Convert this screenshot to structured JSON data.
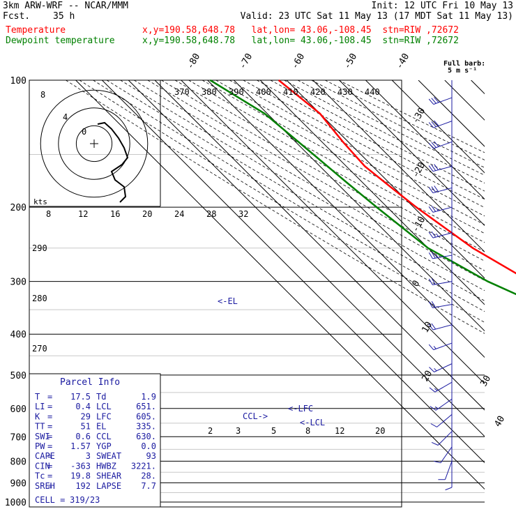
{
  "header": {
    "model": "3km ARW-WRF -- NCAR/MMM",
    "fcst_label": "Fcst.",
    "fcst_value": "35 h",
    "init": "Init: 12 UTC Fri 10 May 13",
    "valid": "Valid: 23 UTC Sat 11 May 13 (17 MDT Sat 11 May 13)",
    "line_temp_name": "Temperature",
    "line_temp_info": "x,y=190.58,648.78   lat,lon= 43.06,-108.45  stn=RIW ,72672",
    "line_dew_name": "Dewpoint temperature",
    "line_dew_info": "x,y=190.58,648.78   lat,lon= 43.06,-108.45  stn=RIW ,72672"
  },
  "colors": {
    "temperature": "#ff0000",
    "dewpoint": "#008000",
    "wind": "#1a1aa0",
    "text": "#000000"
  },
  "chart_data": {
    "type": "line",
    "title": "",
    "ylabel": "",
    "xlabel": "",
    "y_scale": "log-pressure",
    "ylim": [
      1000,
      100
    ],
    "pressure_ticks": [
      100,
      200,
      300,
      400,
      500,
      600,
      700,
      800,
      900,
      1000
    ],
    "pressure_tick_labels": [
      "100",
      "200",
      "300",
      "400",
      "500",
      "600",
      "700",
      "800",
      "900",
      "1000"
    ],
    "isotherm_labels": [
      "-80",
      "-70",
      "-60",
      "-50",
      "-40",
      "-30",
      "-20",
      "-10",
      "0",
      "10",
      "20",
      "30",
      "40"
    ],
    "theta_labels_upper": [
      "370",
      "380",
      "390",
      "400",
      "410",
      "420",
      "430",
      "440"
    ],
    "theta_labels_left": [
      "290",
      "280",
      "270"
    ],
    "mixing_ratio_labels": [
      "2",
      "3",
      "5",
      "8",
      "12",
      "20"
    ],
    "hodograph_speed_labels": [
      "8",
      "12",
      "16",
      "20",
      "24",
      "28",
      "32"
    ],
    "hodograph_units": "kts",
    "hodograph_ring_labels": [
      "8",
      "4",
      "0"
    ],
    "wind_key": [
      "Full barb:",
      "5 m s⁻¹"
    ],
    "parcel_levels": [
      "<-EL",
      "<-LFC",
      "<-LCL",
      "CCL->"
    ],
    "series": [
      {
        "name": "Temperature",
        "points": [
          [
            100,
            -63
          ],
          [
            120,
            -60
          ],
          [
            140,
            -62
          ],
          [
            160,
            -63
          ],
          [
            180,
            -61
          ],
          [
            200,
            -59
          ],
          [
            250,
            -53
          ],
          [
            300,
            -44
          ],
          [
            350,
            -37
          ],
          [
            400,
            -29
          ],
          [
            450,
            -22
          ],
          [
            500,
            -16
          ],
          [
            550,
            -9
          ],
          [
            600,
            -3
          ],
          [
            650,
            4
          ],
          [
            700,
            9
          ],
          [
            750,
            14
          ],
          [
            800,
            18
          ],
          [
            840,
            20.5
          ]
        ]
      },
      {
        "name": "Dewpoint temperature",
        "points": [
          [
            100,
            -89
          ],
          [
            120,
            -81
          ],
          [
            150,
            -78
          ],
          [
            175,
            -76
          ],
          [
            200,
            -74
          ],
          [
            250,
            -70
          ],
          [
            300,
            -60
          ],
          [
            350,
            -47
          ],
          [
            400,
            -36
          ],
          [
            450,
            -27
          ],
          [
            500,
            -20
          ],
          [
            550,
            -12
          ],
          [
            600,
            -6
          ],
          [
            650,
            -3
          ],
          [
            700,
            -2
          ],
          [
            760,
            -1
          ],
          [
            800,
            0
          ],
          [
            820,
            0
          ]
        ]
      }
    ],
    "wind_barbs": [
      {
        "p": 110,
        "dir": 250,
        "spd": 30
      },
      {
        "p": 125,
        "dir": 250,
        "spd": 30
      },
      {
        "p": 140,
        "dir": 250,
        "spd": 30
      },
      {
        "p": 160,
        "dir": 255,
        "spd": 30
      },
      {
        "p": 180,
        "dir": 255,
        "spd": 30
      },
      {
        "p": 200,
        "dir": 255,
        "spd": 25
      },
      {
        "p": 230,
        "dir": 255,
        "spd": 25
      },
      {
        "p": 260,
        "dir": 260,
        "spd": 25
      },
      {
        "p": 300,
        "dir": 260,
        "spd": 20
      },
      {
        "p": 340,
        "dir": 260,
        "spd": 20
      },
      {
        "p": 380,
        "dir": 255,
        "spd": 20
      },
      {
        "p": 420,
        "dir": 250,
        "spd": 15
      },
      {
        "p": 470,
        "dir": 245,
        "spd": 15
      },
      {
        "p": 520,
        "dir": 240,
        "spd": 15
      },
      {
        "p": 570,
        "dir": 235,
        "spd": 15
      },
      {
        "p": 620,
        "dir": 230,
        "spd": 10
      },
      {
        "p": 680,
        "dir": 225,
        "spd": 10
      },
      {
        "p": 740,
        "dir": 215,
        "spd": 10
      },
      {
        "p": 800,
        "dir": 200,
        "spd": 10
      },
      {
        "p": 830,
        "dir": 180,
        "spd": 10
      }
    ]
  },
  "parcel_info": {
    "title": "Parcel Info",
    "rows": [
      {
        "k1": "T",
        "v1": "17.5",
        "k2": "Td",
        "v2": "1.9"
      },
      {
        "k1": "LI",
        "v1": "0.4",
        "k2": "LCL",
        "v2": "651."
      },
      {
        "k1": "K",
        "v1": "29",
        "k2": "LFC",
        "v2": "605."
      },
      {
        "k1": "TT",
        "v1": "51",
        "k2": "EL",
        "v2": "335."
      },
      {
        "k1": "SWI",
        "v1": "0.6",
        "k2": "CCL",
        "v2": "630."
      },
      {
        "k1": "PW",
        "v1": "1.57",
        "k2": "YGP",
        "v2": "0.0"
      },
      {
        "k1": "CAPE",
        "v1": "3",
        "k2": "SWEAT",
        "v2": "93"
      },
      {
        "k1": "CIN",
        "v1": "-363",
        "k2": "HWBZ",
        "v2": "3221."
      },
      {
        "k1": "Tc",
        "v1": "19.8",
        "k2": "SHEAR",
        "v2": "28."
      },
      {
        "k1": "SREH",
        "v1": "192",
        "k2": "LAPSE",
        "v2": "7.7"
      }
    ],
    "cell_label": "CELL =",
    "cell_value": "319/23"
  }
}
